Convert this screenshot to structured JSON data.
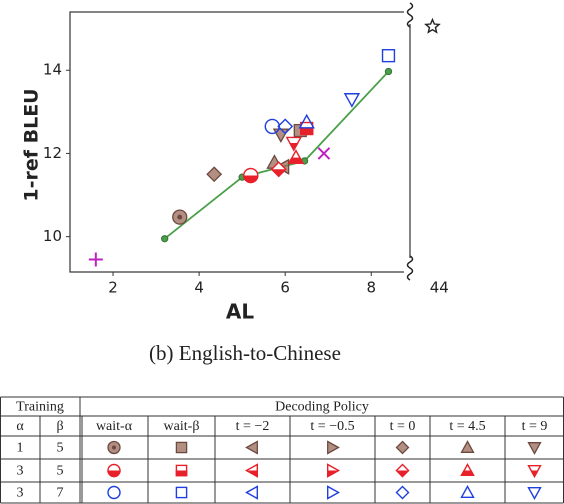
{
  "chart_data": {
    "type": "scatter",
    "xlabel": "AL",
    "ylabel": "1-ref BLEU",
    "caption": "(b) English-to-Chinese",
    "xlim": [
      1,
      8.9
    ],
    "xticks": [
      2,
      4,
      6,
      8
    ],
    "x2lim": [
      43.4,
      44.5
    ],
    "x2ticks": [
      44
    ],
    "ylim": [
      9.15,
      15.4
    ],
    "yticks": [
      10,
      12,
      14
    ],
    "series": [
      {
        "marker": "dot",
        "color": "#4aa04a",
        "fill": "full",
        "line": true,
        "x": [
          3.2,
          5.0,
          6.45,
          8.4
        ],
        "values": [
          9.95,
          11.43,
          11.82,
          13.97
        ]
      },
      {
        "marker": "plus",
        "color": "#c020c0",
        "fill": "none",
        "x": [
          1.6
        ],
        "values": [
          9.45
        ]
      },
      {
        "marker": "cross",
        "color": "#c020c0",
        "fill": "none",
        "x": [
          6.9
        ],
        "values": [
          12.0
        ]
      },
      {
        "marker": "star",
        "color": "#222222",
        "fill": "none",
        "axis": "x2",
        "x": [
          43.85
        ],
        "values": [
          15.05
        ]
      },
      {
        "marker": "circle",
        "color": "#9a6a5a",
        "fill": "full",
        "x": [
          3.55
        ],
        "values": [
          10.47
        ]
      },
      {
        "marker": "diamond",
        "color": "#9a6a5a",
        "fill": "full",
        "x": [
          4.35
        ],
        "values": [
          11.5
        ]
      },
      {
        "marker": "up",
        "color": "#9a6a5a",
        "fill": "full",
        "x": [
          5.75
        ],
        "values": [
          11.78
        ]
      },
      {
        "marker": "left",
        "color": "#9a6a5a",
        "fill": "full",
        "x": [
          5.95
        ],
        "values": [
          11.68
        ]
      },
      {
        "marker": "down",
        "color": "#9a6a5a",
        "fill": "full",
        "x": [
          5.9
        ],
        "values": [
          12.45
        ]
      },
      {
        "marker": "square",
        "color": "#9a6a5a",
        "fill": "full",
        "x": [
          6.35
        ],
        "values": [
          12.55
        ]
      },
      {
        "marker": "circle",
        "color": "#e8202a",
        "fill": "half",
        "x": [
          5.2
        ],
        "values": [
          11.47
        ]
      },
      {
        "marker": "diamond",
        "color": "#e8202a",
        "fill": "half",
        "x": [
          5.85
        ],
        "values": [
          11.62
        ]
      },
      {
        "marker": "up",
        "color": "#e8202a",
        "fill": "half",
        "x": [
          6.25
        ],
        "values": [
          11.9
        ]
      },
      {
        "marker": "down",
        "color": "#e8202a",
        "fill": "half",
        "x": [
          6.2
        ],
        "values": [
          12.25
        ]
      },
      {
        "marker": "square",
        "color": "#e8202a",
        "fill": "half",
        "x": [
          6.5
        ],
        "values": [
          12.6
        ]
      },
      {
        "marker": "circle",
        "color": "#1f3fe0",
        "fill": "none",
        "x": [
          5.7
        ],
        "values": [
          12.65
        ]
      },
      {
        "marker": "diamond",
        "color": "#1f3fe0",
        "fill": "none",
        "x": [
          6.0
        ],
        "values": [
          12.65
        ]
      },
      {
        "marker": "up",
        "color": "#1f3fe0",
        "fill": "none",
        "x": [
          6.5
        ],
        "values": [
          12.75
        ]
      },
      {
        "marker": "down",
        "color": "#1f3fe0",
        "fill": "none",
        "x": [
          7.55
        ],
        "values": [
          13.3
        ]
      },
      {
        "marker": "square",
        "color": "#1f3fe0",
        "fill": "none",
        "x": [
          8.4
        ],
        "values": [
          14.35
        ]
      }
    ]
  },
  "table": {
    "header_top": [
      "Training",
      "Decoding Policy"
    ],
    "header": [
      "α",
      "β",
      "wait-α",
      "wait-β",
      "t = −2",
      "t = −0.5",
      "t = 0",
      "t = 4.5",
      "t = 9"
    ],
    "rows": [
      [
        "1",
        "5"
      ],
      [
        "3",
        "5"
      ],
      [
        "3",
        "7"
      ]
    ]
  }
}
